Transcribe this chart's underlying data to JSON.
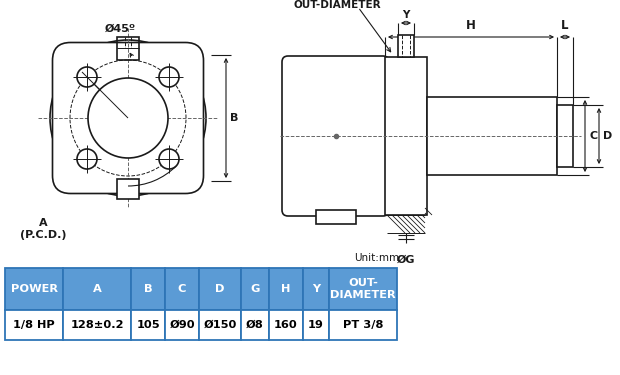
{
  "table_header": [
    "POWER",
    "A",
    "B",
    "C",
    "D",
    "G",
    "H",
    "Y",
    "OUT-\nDIAMETER"
  ],
  "table_row": [
    "1/8 HP",
    "128±0.2",
    "105",
    "Ø90",
    "Ø150",
    "Ø8",
    "160",
    "19",
    "PT 3/8"
  ],
  "header_bg": "#5b9bd5",
  "header_text": "#ffffff",
  "row_bg": "#ffffff",
  "row_text": "#000000",
  "border_color": "#2e75b6",
  "unit_text": "Unit:mm",
  "label_45": "Ø45º",
  "label_A": "A\n(P.C.D.)",
  "label_B": "B",
  "label_H": "H",
  "label_L": "L",
  "label_Y": "Y",
  "label_C": "C",
  "label_D": "D",
  "label_G": "ØG",
  "label_OUT": "OUT-DIAMETER",
  "bg_color": "#ffffff",
  "line_color": "#1a1a1a",
  "dim_line_color": "#1a1a1a",
  "gray_color": "#666666"
}
